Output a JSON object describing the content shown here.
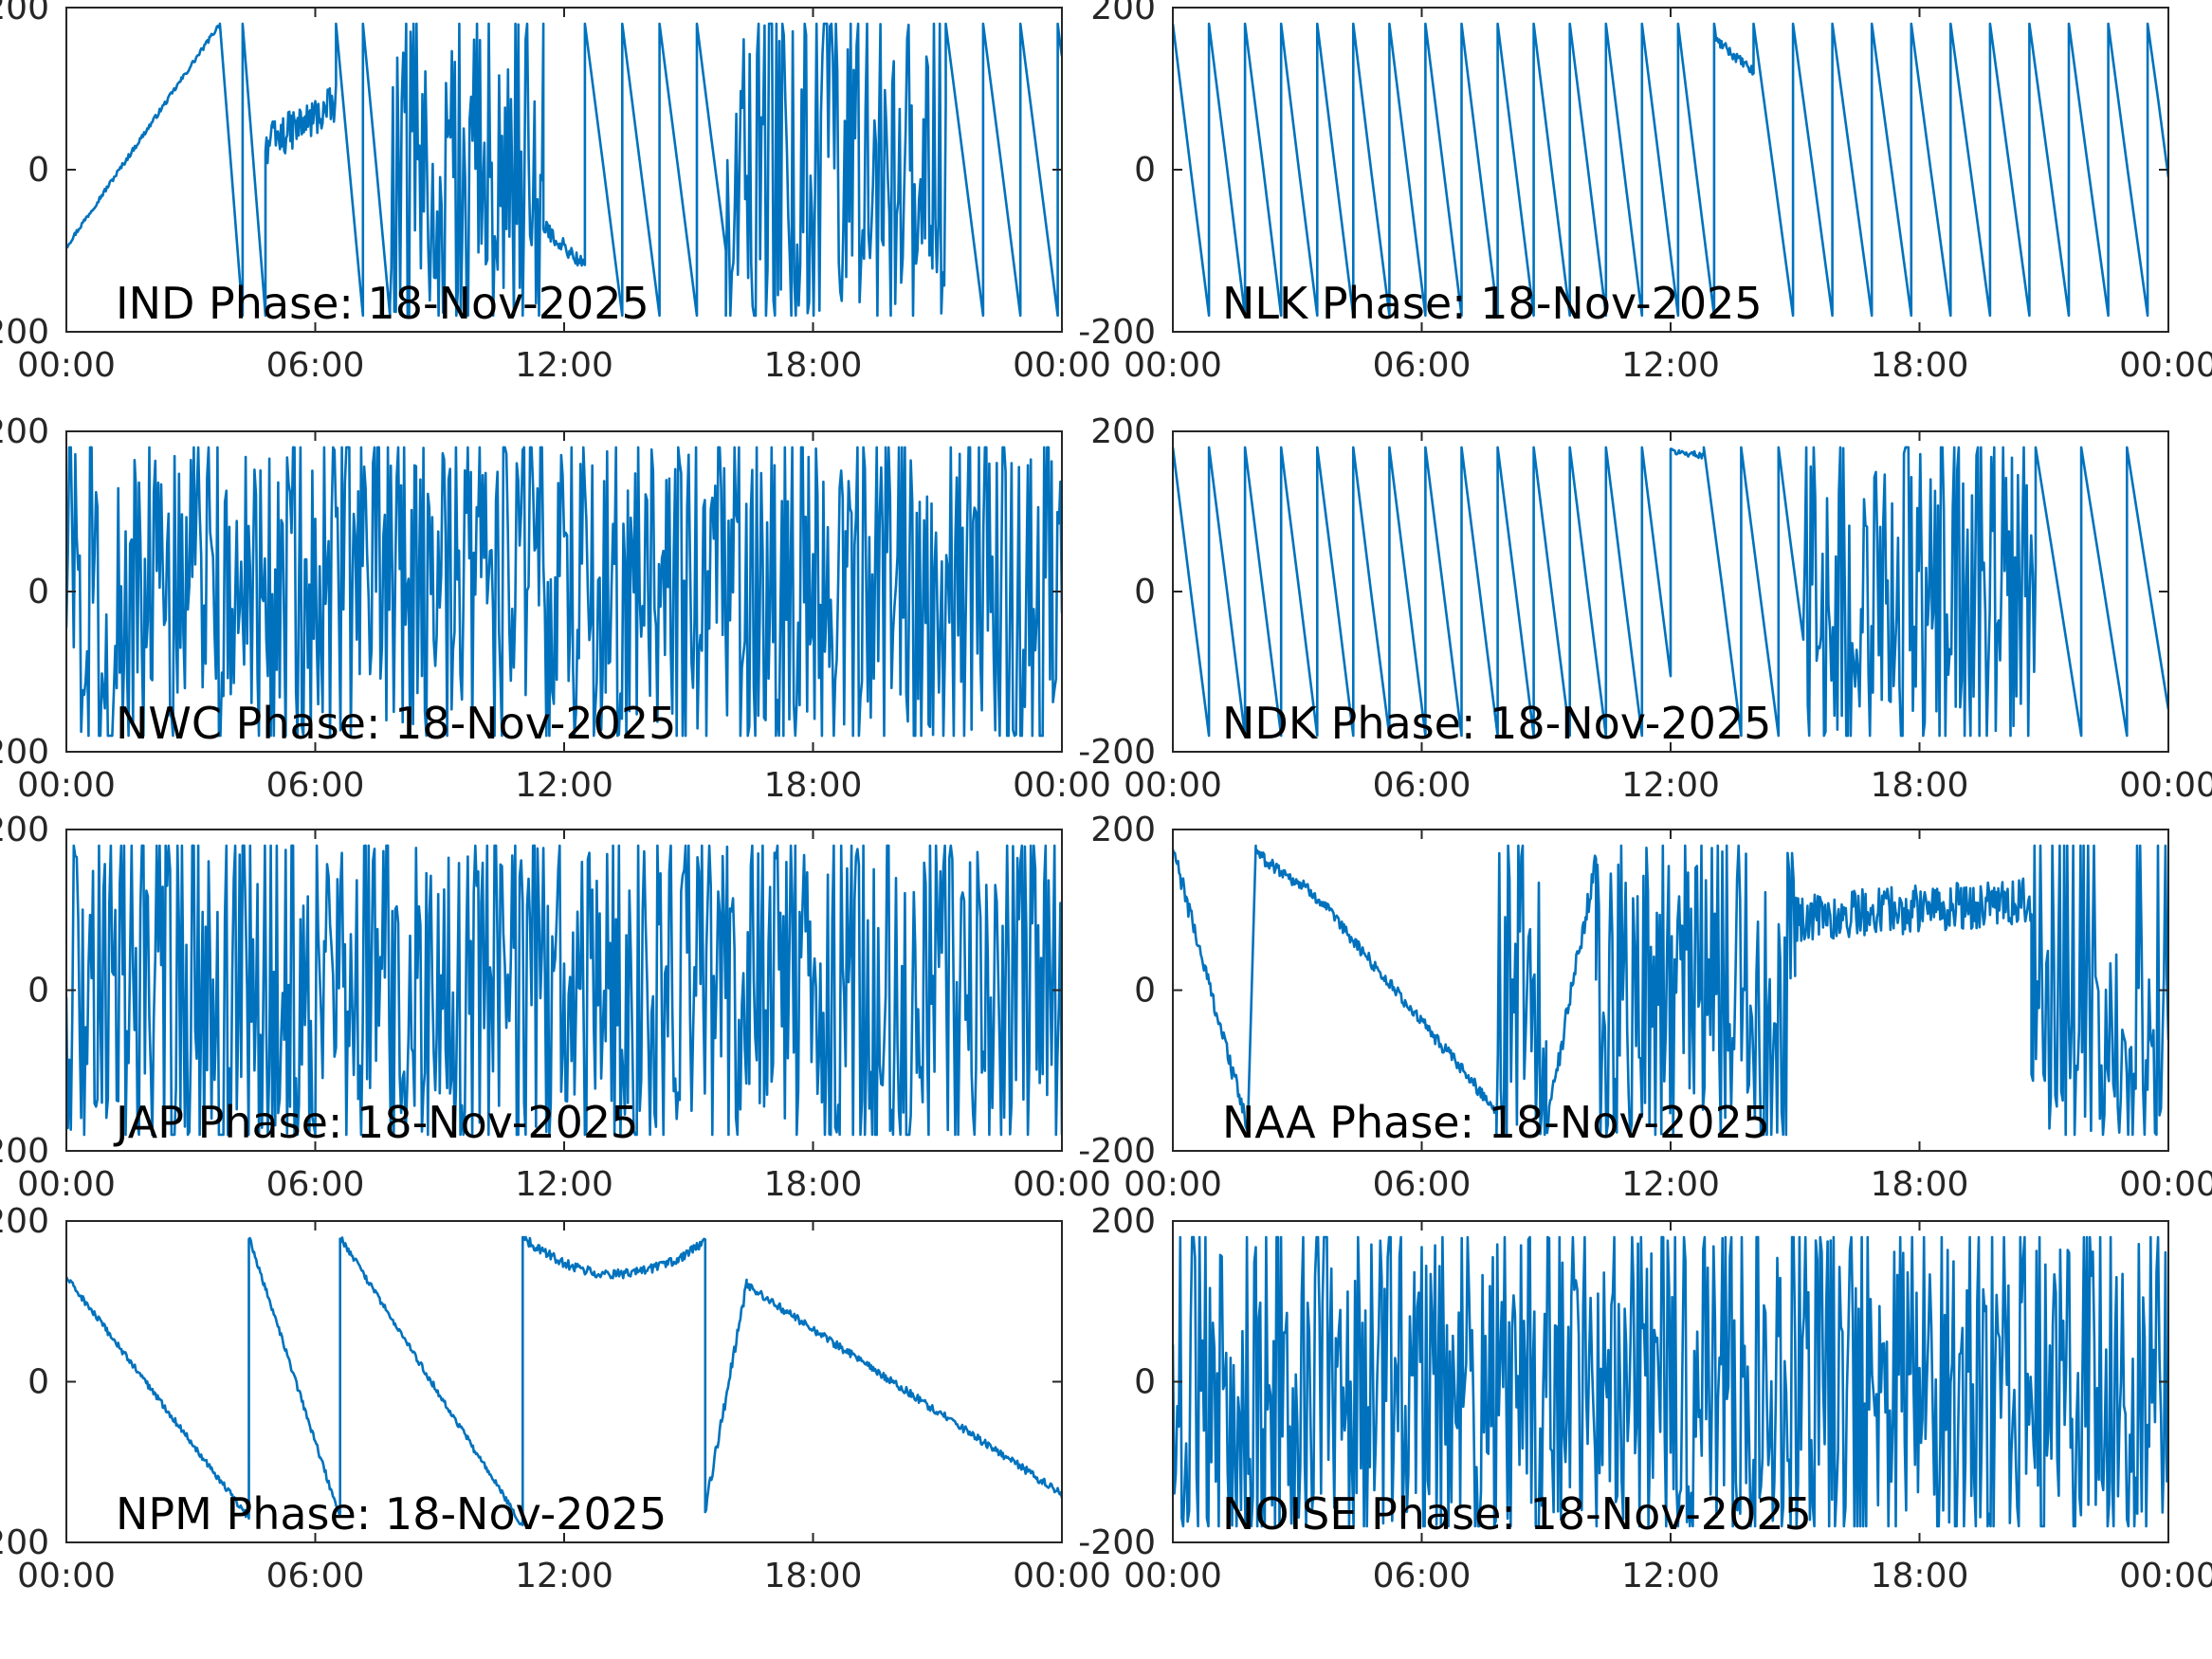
{
  "figure": {
    "line_color": "#0072bd",
    "axes_color": "#262626",
    "background": "#ffffff"
  },
  "chart_data": [
    {
      "type": "line",
      "annotation": "IND Phase: 18-Nov-2025",
      "x_tick_labels": [
        "00:00",
        "06:00",
        "12:00",
        "18:00",
        "00:00"
      ],
      "y_tick_labels": [
        "-200",
        "0",
        "200"
      ],
      "xlim": [
        0,
        24
      ],
      "ylim": [
        -200,
        200
      ],
      "x_unit": "hours",
      "grid": false,
      "segments": [
        {
          "kind": "wander",
          "from": 0.0,
          "to": 3.7,
          "y0": -95,
          "y1": 180,
          "amp": 3
        },
        {
          "kind": "sawtooth",
          "from": 3.7,
          "to": 4.8,
          "period": 0.55,
          "dir": "down"
        },
        {
          "kind": "wander",
          "from": 4.8,
          "to": 6.5,
          "y0": 30,
          "y1": 80,
          "amp": 25
        },
        {
          "kind": "sawtooth",
          "from": 6.5,
          "to": 7.8,
          "period": 0.65,
          "dir": "down"
        },
        {
          "kind": "noise",
          "from": 7.8,
          "to": 11.5,
          "mean": 0,
          "amp": 180
        },
        {
          "kind": "wander",
          "from": 11.5,
          "to": 12.5,
          "y0": -70,
          "y1": -120,
          "amp": 10
        },
        {
          "kind": "sawtooth",
          "from": 12.5,
          "to": 15.9,
          "period": 0.9,
          "dir": "down"
        },
        {
          "kind": "noise",
          "from": 15.9,
          "to": 21.2,
          "mean": 0,
          "amp": 180
        },
        {
          "kind": "sawtooth",
          "from": 21.2,
          "to": 24.0,
          "period": 0.9,
          "dir": "down"
        }
      ]
    },
    {
      "type": "line",
      "annotation": "NLK Phase: 18-Nov-2025",
      "x_tick_labels": [
        "00:00",
        "06:00",
        "12:00",
        "18:00",
        "00:00"
      ],
      "y_tick_labels": [
        "-200",
        "0",
        "200"
      ],
      "xlim": [
        0,
        24
      ],
      "ylim": [
        -200,
        200
      ],
      "x_unit": "hours",
      "grid": false,
      "segments": [
        {
          "kind": "sawtooth",
          "from": 0.0,
          "to": 13.1,
          "period": 0.87,
          "dir": "down"
        },
        {
          "kind": "wander",
          "from": 13.1,
          "to": 14.0,
          "y0": 160,
          "y1": 120,
          "amp": 6
        },
        {
          "kind": "sawtooth",
          "from": 14.0,
          "to": 24.0,
          "period": 0.95,
          "dir": "down"
        }
      ]
    },
    {
      "type": "line",
      "annotation": "NWC Phase: 18-Nov-2025",
      "x_tick_labels": [
        "00:00",
        "06:00",
        "12:00",
        "18:00",
        "00:00"
      ],
      "y_tick_labels": [
        "-200",
        "0",
        "200"
      ],
      "xlim": [
        0,
        24
      ],
      "ylim": [
        -200,
        200
      ],
      "x_unit": "hours",
      "grid": false,
      "segments": [
        {
          "kind": "noise",
          "from": 0.0,
          "to": 24.0,
          "mean": 0,
          "amp": 180
        }
      ]
    },
    {
      "type": "line",
      "annotation": "NDK Phase: 18-Nov-2025",
      "x_tick_labels": [
        "00:00",
        "06:00",
        "12:00",
        "18:00",
        "00:00"
      ],
      "y_tick_labels": [
        "-200",
        "0",
        "200"
      ],
      "xlim": [
        0,
        24
      ],
      "ylim": [
        -200,
        200
      ],
      "x_unit": "hours",
      "grid": false,
      "segments": [
        {
          "kind": "sawtooth",
          "from": 0.0,
          "to": 12.0,
          "period": 0.87,
          "dir": "down"
        },
        {
          "kind": "wander",
          "from": 12.0,
          "to": 12.8,
          "y0": 175,
          "y1": 170,
          "amp": 4
        },
        {
          "kind": "sawtooth",
          "from": 12.8,
          "to": 15.2,
          "period": 0.9,
          "dir": "down"
        },
        {
          "kind": "noise",
          "from": 15.2,
          "to": 20.8,
          "mean": 0,
          "amp": 180
        },
        {
          "kind": "sawtooth",
          "from": 20.8,
          "to": 24.0,
          "period": 1.1,
          "dir": "down"
        }
      ]
    },
    {
      "type": "line",
      "annotation": "JAP Phase: 18-Nov-2025",
      "x_tick_labels": [
        "00:00",
        "06:00",
        "12:00",
        "18:00",
        "00:00"
      ],
      "y_tick_labels": [
        "-200",
        "0",
        "200"
      ],
      "xlim": [
        0,
        24
      ],
      "ylim": [
        -200,
        200
      ],
      "x_unit": "hours",
      "grid": false,
      "segments": [
        {
          "kind": "noise",
          "from": 0.0,
          "to": 24.0,
          "mean": 0,
          "amp": 180
        }
      ]
    },
    {
      "type": "line",
      "annotation": "NAA Phase: 18-Nov-2025",
      "x_tick_labels": [
        "00:00",
        "06:00",
        "12:00",
        "18:00",
        "00:00"
      ],
      "y_tick_labels": [
        "-200",
        "0",
        "200"
      ],
      "xlim": [
        0,
        24
      ],
      "ylim": [
        -200,
        200
      ],
      "x_unit": "hours",
      "grid": false,
      "segments": [
        {
          "kind": "wander",
          "from": 0.0,
          "to": 1.8,
          "y0": 175,
          "y1": -170,
          "amp": 12
        },
        {
          "kind": "sawtooth",
          "from": 1.8,
          "to": 2.0,
          "period": 0.2,
          "dir": "up"
        },
        {
          "kind": "wander",
          "from": 2.0,
          "to": 3.4,
          "y0": 170,
          "y1": 120,
          "amp": 8
        },
        {
          "kind": "wander",
          "from": 3.4,
          "to": 7.8,
          "y0": 120,
          "y1": -150,
          "amp": 8
        },
        {
          "kind": "noise",
          "from": 7.8,
          "to": 9.0,
          "mean": 0,
          "amp": 180
        },
        {
          "kind": "wander",
          "from": 9.0,
          "to": 10.2,
          "y0": -170,
          "y1": 160,
          "amp": 15
        },
        {
          "kind": "noise",
          "from": 10.2,
          "to": 15.0,
          "mean": 0,
          "amp": 180
        },
        {
          "kind": "wander",
          "from": 15.0,
          "to": 20.7,
          "y0": 90,
          "y1": 110,
          "amp": 30
        },
        {
          "kind": "noise",
          "from": 20.7,
          "to": 24.0,
          "mean": -60,
          "amp": 120
        }
      ]
    },
    {
      "type": "line",
      "annotation": "NPM Phase: 18-Nov-2025",
      "x_tick_labels": [
        "00:00",
        "06:00",
        "12:00",
        "18:00",
        "00:00"
      ],
      "y_tick_labels": [
        "-200",
        "0",
        "200"
      ],
      "xlim": [
        0,
        24
      ],
      "ylim": [
        -200,
        200
      ],
      "x_unit": "hours",
      "grid": false,
      "segments": [
        {
          "kind": "wander",
          "from": 0.0,
          "to": 4.4,
          "y0": 130,
          "y1": -170,
          "amp": 4
        },
        {
          "kind": "wander",
          "from": 4.4,
          "to": 6.6,
          "y0": 180,
          "y1": -170,
          "amp": 4
        },
        {
          "kind": "wander",
          "from": 6.6,
          "to": 11.0,
          "y0": 180,
          "y1": -180,
          "amp": 4
        },
        {
          "kind": "bowl",
          "from": 11.0,
          "to": 15.4,
          "y0": 180,
          "ymid": 90,
          "y1": 175,
          "amp": 6
        },
        {
          "kind": "wander",
          "from": 15.4,
          "to": 16.4,
          "y0": -160,
          "y1": 120,
          "amp": 8
        },
        {
          "kind": "wander",
          "from": 16.4,
          "to": 24.0,
          "y0": 120,
          "y1": -140,
          "amp": 5
        }
      ]
    },
    {
      "type": "line",
      "annotation": "NOISE Phase: 18-Nov-2025",
      "x_tick_labels": [
        "00:00",
        "06:00",
        "12:00",
        "18:00",
        "00:00"
      ],
      "y_tick_labels": [
        "-200",
        "0",
        "200"
      ],
      "xlim": [
        0,
        24
      ],
      "ylim": [
        -200,
        200
      ],
      "x_unit": "hours",
      "grid": false,
      "segments": [
        {
          "kind": "noise",
          "from": 0.0,
          "to": 24.0,
          "mean": 0,
          "amp": 180
        }
      ]
    }
  ]
}
